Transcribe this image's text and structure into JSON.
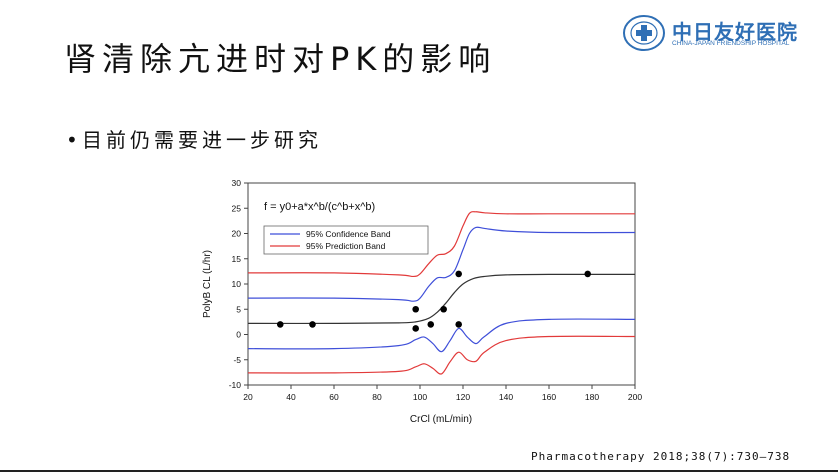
{
  "slide": {
    "title": "肾清除亢进时对PK的影响",
    "bullet": "目前仍需要进一步研究",
    "citation": "Pharmacotherapy 2018;38(7):730–738"
  },
  "logo": {
    "text_cn": "中日友好医院",
    "text_en": "CHINA-JAPAN FRIENDSHIP HOSPITAL",
    "icon": "hospital-emblem-icon",
    "color": "#2f6fb5"
  },
  "chart_data": {
    "type": "scatter",
    "equation": "f = y0+a*x^b/(c^b+x^b)",
    "xlabel": "CrCl (mL/min)",
    "ylabel": "PolyB CL (L/hr)",
    "xlim": [
      20,
      200
    ],
    "ylim": [
      -10,
      30
    ],
    "xticks": [
      20,
      40,
      60,
      80,
      100,
      120,
      140,
      160,
      180,
      200
    ],
    "yticks": [
      -10,
      -5,
      0,
      5,
      10,
      15,
      20,
      25,
      30
    ],
    "grid": false,
    "legend_position": "top-left",
    "legend": [
      {
        "name": "95% Confidence Band",
        "color": "#3f4fd9"
      },
      {
        "name": "95% Prediction Band",
        "color": "#e23a3a"
      }
    ],
    "points": [
      {
        "x": 35,
        "y": 2
      },
      {
        "x": 50,
        "y": 2
      },
      {
        "x": 98,
        "y": 5
      },
      {
        "x": 98,
        "y": 1.2
      },
      {
        "x": 105,
        "y": 2
      },
      {
        "x": 111,
        "y": 5
      },
      {
        "x": 118,
        "y": 12
      },
      {
        "x": 118,
        "y": 2
      },
      {
        "x": 178,
        "y": 12
      }
    ],
    "fit_curve": {
      "color": "#333333",
      "x": [
        20,
        60,
        90,
        98,
        104,
        108,
        112,
        116,
        120,
        125,
        130,
        140,
        160,
        200
      ],
      "y": [
        2.2,
        2.2,
        2.3,
        2.5,
        3.2,
        4.4,
        6.2,
        8.3,
        10.0,
        11.1,
        11.5,
        11.8,
        11.9,
        11.9
      ]
    },
    "confidence_upper": {
      "color": "#3f4fd9",
      "x": [
        20,
        60,
        90,
        97,
        100,
        104,
        108,
        112,
        116,
        120,
        123,
        126,
        130,
        140,
        160,
        200
      ],
      "y": [
        7.2,
        7.2,
        6.9,
        6.6,
        7.2,
        9.5,
        11.2,
        11.3,
        12.6,
        16.8,
        20.0,
        21.2,
        21.0,
        20.5,
        20.2,
        20.2
      ]
    },
    "confidence_lower": {
      "color": "#3f4fd9",
      "x": [
        20,
        60,
        90,
        98,
        102,
        106,
        110,
        114,
        118,
        122,
        126,
        130,
        140,
        160,
        200
      ],
      "y": [
        -2.8,
        -2.8,
        -2.2,
        -1.0,
        -0.5,
        -1.8,
        -3.4,
        -1.2,
        1.2,
        -0.5,
        -1.8,
        -0.4,
        2.2,
        3.0,
        3.0
      ]
    },
    "prediction_upper": {
      "color": "#e23a3a",
      "x": [
        20,
        60,
        90,
        97,
        100,
        104,
        108,
        112,
        116,
        120,
        123,
        126,
        130,
        140,
        160,
        200
      ],
      "y": [
        12.2,
        12.2,
        11.8,
        11.5,
        12.0,
        14.0,
        15.7,
        16.0,
        17.5,
        21.5,
        24.0,
        24.3,
        24.1,
        23.9,
        23.9,
        23.9
      ]
    },
    "prediction_lower": {
      "color": "#e23a3a",
      "x": [
        20,
        60,
        90,
        98,
        102,
        106,
        110,
        114,
        118,
        122,
        126,
        130,
        140,
        160,
        200
      ],
      "y": [
        -7.6,
        -7.6,
        -7.3,
        -6.4,
        -5.8,
        -6.7,
        -7.8,
        -5.4,
        -3.5,
        -5.0,
        -5.3,
        -3.5,
        -1.2,
        -0.4,
        -0.4
      ]
    }
  }
}
